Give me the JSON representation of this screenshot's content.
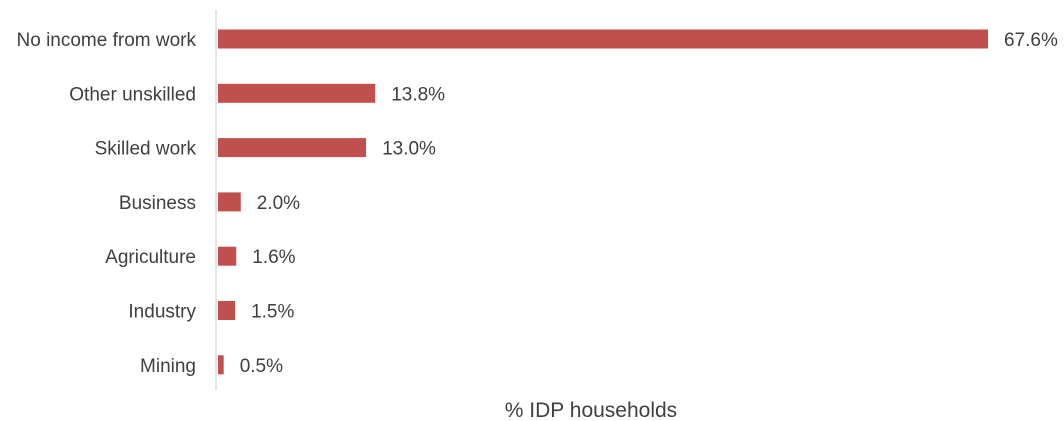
{
  "chart_data": {
    "type": "bar",
    "orientation": "horizontal",
    "categories": [
      "No income from work",
      "Other unskilled",
      "Skilled work",
      "Business",
      "Agriculture",
      "Industry",
      "Mining"
    ],
    "values": [
      67.6,
      13.8,
      13.0,
      2.0,
      1.6,
      1.5,
      0.5
    ],
    "value_labels": [
      "67.6%",
      "13.8%",
      "13.0%",
      "2.0%",
      "1.6%",
      "1.5%",
      "0.5%"
    ],
    "xlabel": "% IDP households",
    "xlim": [
      0,
      67.6
    ],
    "grid": false,
    "legend": "none",
    "bar_color": "#c0504d",
    "axis_color": "#d9d9d9",
    "text_color": "#404040"
  }
}
